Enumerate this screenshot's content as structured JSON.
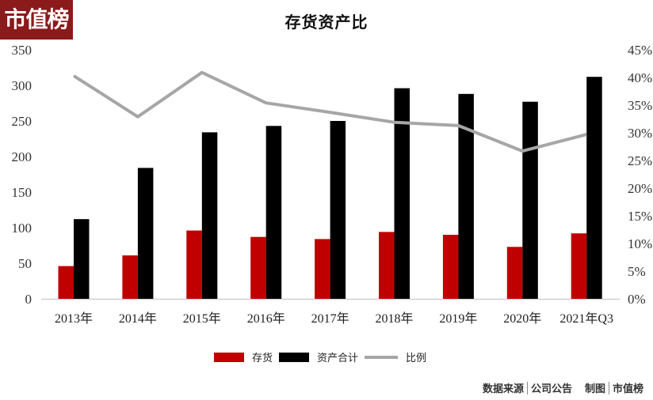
{
  "logo": {
    "text": "市值榜",
    "color": "#8b1a1a"
  },
  "chart_data": {
    "type": "bar",
    "title": "存货资产比",
    "categories": [
      "2013年",
      "2014年",
      "2015年",
      "2016年",
      "2017年",
      "2018年",
      "2019年",
      "2020年",
      "2021年Q3"
    ],
    "series": [
      {
        "name": "存货",
        "type": "bar",
        "axis": "left",
        "color": "#c00000",
        "values": [
          46,
          61,
          96,
          87,
          84,
          94,
          90,
          73,
          92
        ]
      },
      {
        "name": "资产合计",
        "type": "bar",
        "axis": "left",
        "color": "#000000",
        "values": [
          112,
          184,
          234,
          243,
          250,
          296,
          288,
          277,
          312
        ]
      },
      {
        "name": "比例",
        "type": "line",
        "axis": "right",
        "color": "#a6a6a6",
        "values": [
          40.3,
          32.9,
          40.9,
          35.4,
          33.7,
          31.9,
          31.3,
          26.7,
          29.7
        ]
      }
    ],
    "ylim": [
      0,
      350
    ],
    "yticks": [
      0,
      50,
      100,
      150,
      200,
      250,
      300,
      350
    ],
    "y2lim": [
      0,
      45
    ],
    "y2ticks": [
      "0%",
      "5%",
      "10%",
      "15%",
      "20%",
      "25%",
      "30%",
      "35%",
      "40%",
      "45%"
    ],
    "xlabel": "",
    "ylabel": "",
    "grid": false,
    "legend_position": "bottom"
  },
  "legend": {
    "items": [
      {
        "label": "存货",
        "color": "#c00000",
        "kind": "box"
      },
      {
        "label": "资产合计",
        "color": "#000000",
        "kind": "box"
      },
      {
        "label": "比例",
        "color": "#a6a6a6",
        "kind": "line"
      }
    ]
  },
  "footer": {
    "source_label": "数据来源",
    "source_value": "公司公告",
    "made_label": "制图",
    "made_value": "市值榜"
  }
}
